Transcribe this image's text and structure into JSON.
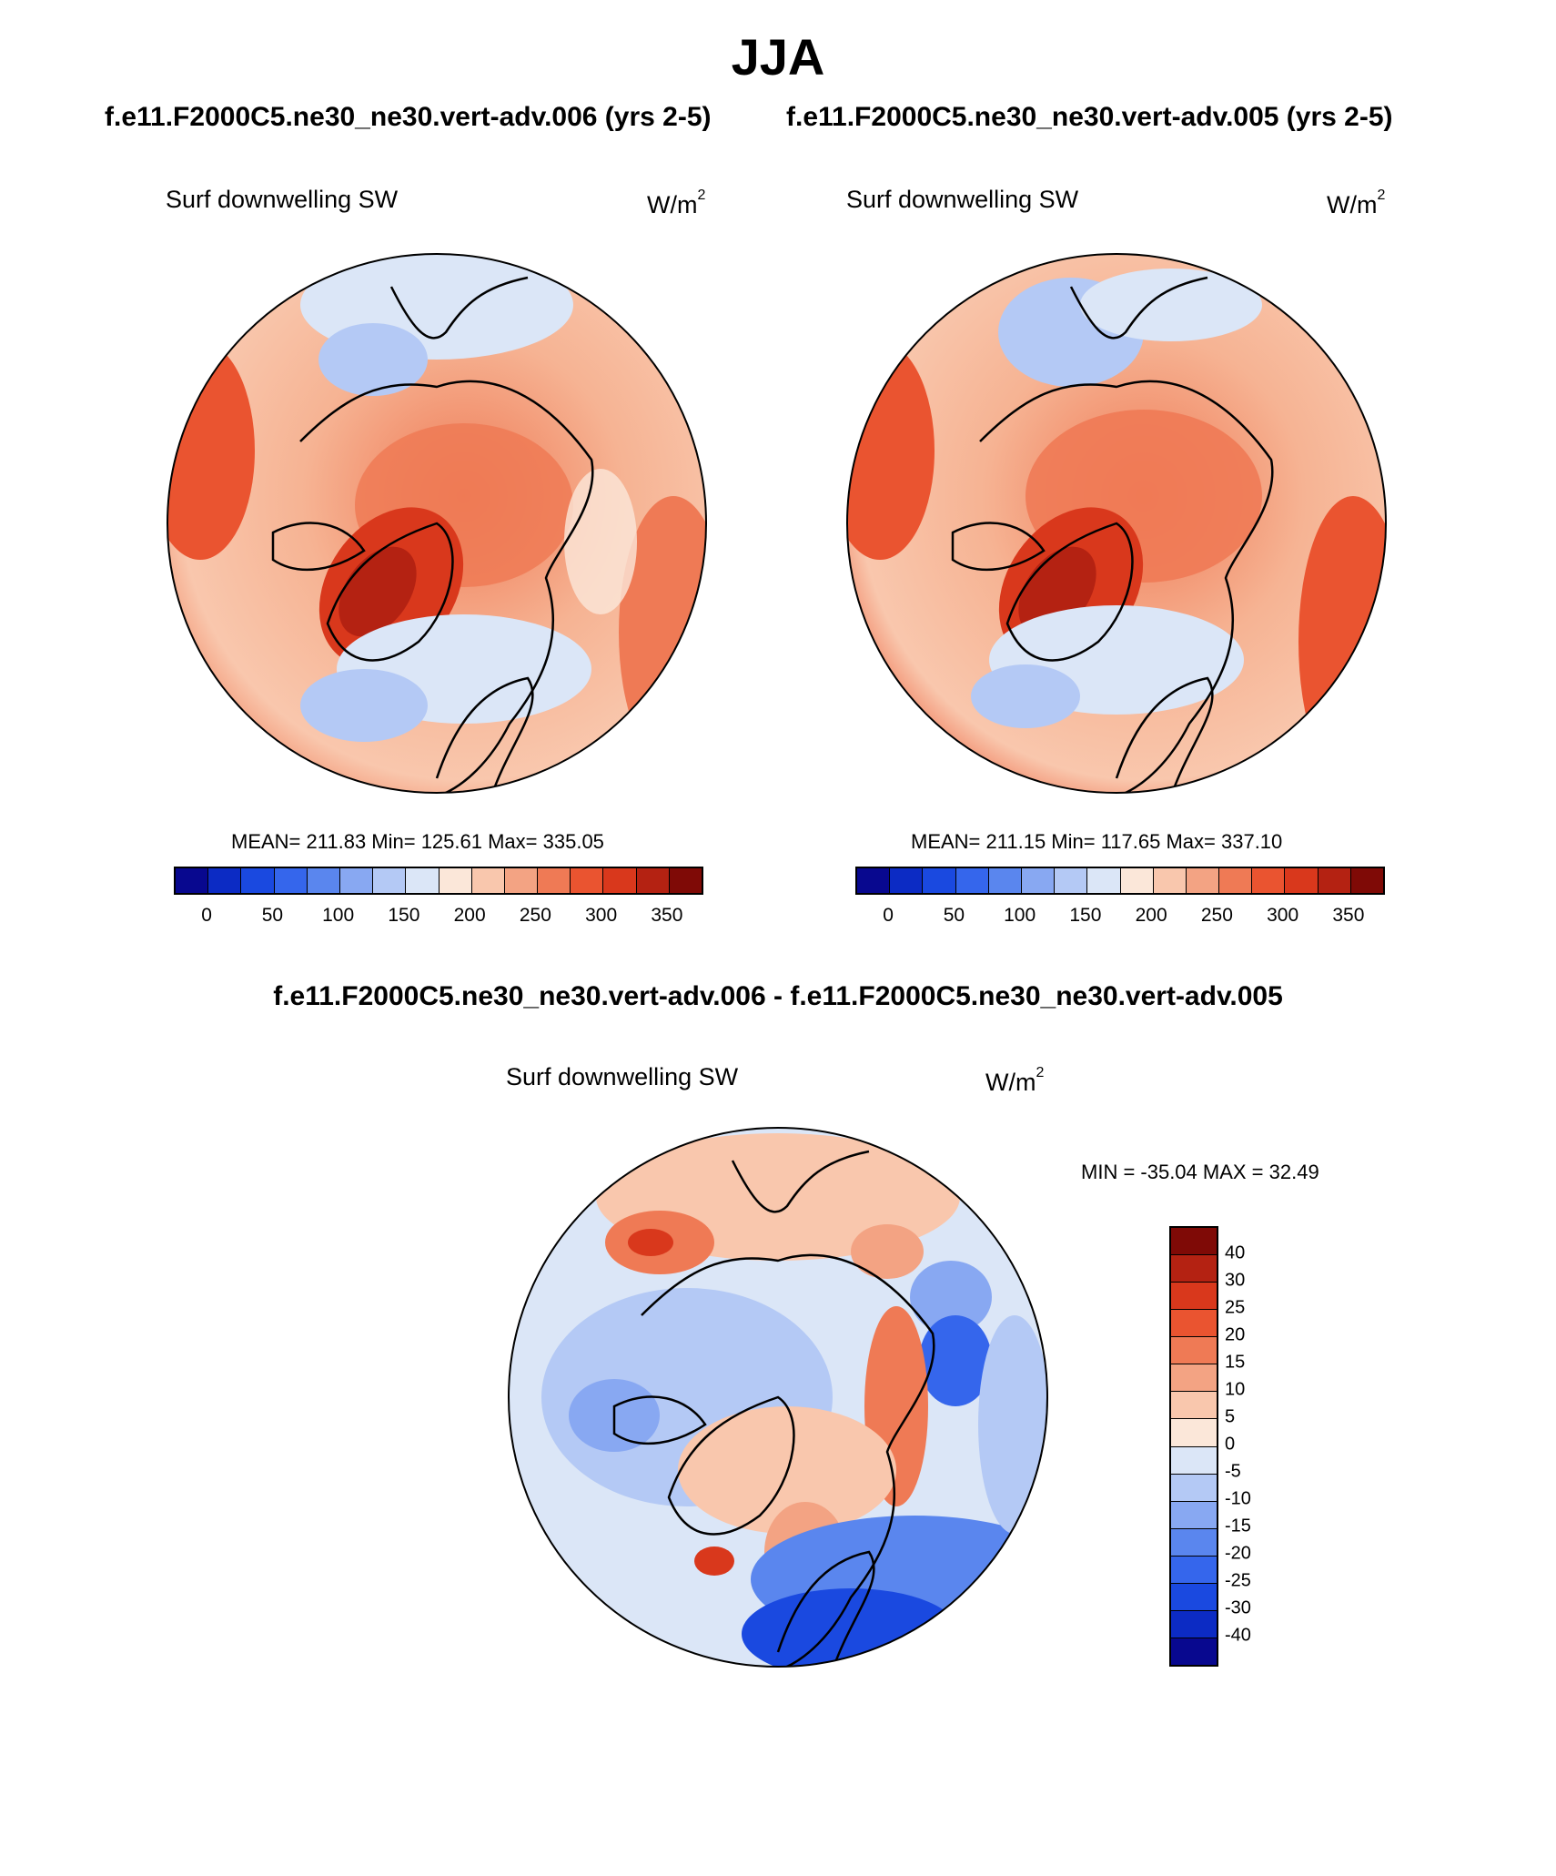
{
  "header": {
    "season": "JJA",
    "case_left": "f.e11.F2000C5.ne30_ne30.vert-adv.006 (yrs 2-5)",
    "case_right": "f.e11.F2000C5.ne30_ne30.vert-adv.005 (yrs 2-5)",
    "diff_title": "f.e11.F2000C5.ne30_ne30.vert-adv.006 - f.e11.F2000C5.ne30_ne30.vert-adv.005"
  },
  "panels": {
    "left": {
      "variable": "Surf downwelling SW",
      "units": "W/m",
      "units_sup": "2",
      "stats": "MEAN= 211.83  Min= 125.61  Max= 335.05"
    },
    "right": {
      "variable": "Surf downwelling SW",
      "units": "W/m",
      "units_sup": "2",
      "stats": "MEAN= 211.15  Min= 117.65  Max= 337.10"
    },
    "diff": {
      "variable": "Surf downwelling SW",
      "units": "W/m",
      "units_sup": "2",
      "stats": "MIN = -35.04 MAX =  32.49"
    }
  },
  "colorbar_main": {
    "colors": [
      "#08088f",
      "#0c2bc4",
      "#1a49e0",
      "#3566ec",
      "#5a86ee",
      "#88a8f2",
      "#b4c9f5",
      "#dbe6f7",
      "#fbe7d9",
      "#f9c7ad",
      "#f3a383",
      "#ef7a55",
      "#ea5430",
      "#d9381c",
      "#b42212",
      "#7f0a06"
    ],
    "ticks": [
      "0",
      "50",
      "100",
      "150",
      "200",
      "250",
      "300",
      "350"
    ]
  },
  "colorbar_diff": {
    "colors_top_to_bottom": [
      "#7f0a06",
      "#b42212",
      "#d9381c",
      "#ea5430",
      "#ef7a55",
      "#f3a383",
      "#f9c7ad",
      "#fbe7d9",
      "#dbe6f7",
      "#b4c9f5",
      "#88a8f2",
      "#5a86ee",
      "#3566ec",
      "#1a49e0",
      "#0c2bc4",
      "#08088f"
    ],
    "ticks": [
      "40",
      "30",
      "25",
      "20",
      "15",
      "10",
      "5",
      "0",
      "-5",
      "-10",
      "-15",
      "-20",
      "-25",
      "-30",
      "-40"
    ]
  },
  "chart_data": {
    "type": "heatmap",
    "projection": "north-polar stereographic",
    "panels": [
      {
        "name": "vert-adv.006",
        "variable": "Surf downwelling SW",
        "units": "W/m2",
        "mean": 211.83,
        "min": 125.61,
        "max": 335.05,
        "levels": [
          0,
          25,
          50,
          75,
          100,
          125,
          150,
          175,
          200,
          225,
          250,
          275,
          300,
          325,
          350
        ]
      },
      {
        "name": "vert-adv.005",
        "variable": "Surf downwelling SW",
        "units": "W/m2",
        "mean": 211.15,
        "min": 117.65,
        "max": 337.1,
        "levels": [
          0,
          25,
          50,
          75,
          100,
          125,
          150,
          175,
          200,
          225,
          250,
          275,
          300,
          325,
          350
        ]
      },
      {
        "name": "difference",
        "variable": "Surf downwelling SW",
        "units": "W/m2",
        "min": -35.04,
        "max": 32.49,
        "levels": [
          -40,
          -30,
          -25,
          -20,
          -15,
          -10,
          -5,
          0,
          5,
          10,
          15,
          20,
          25,
          30,
          40
        ]
      }
    ]
  }
}
